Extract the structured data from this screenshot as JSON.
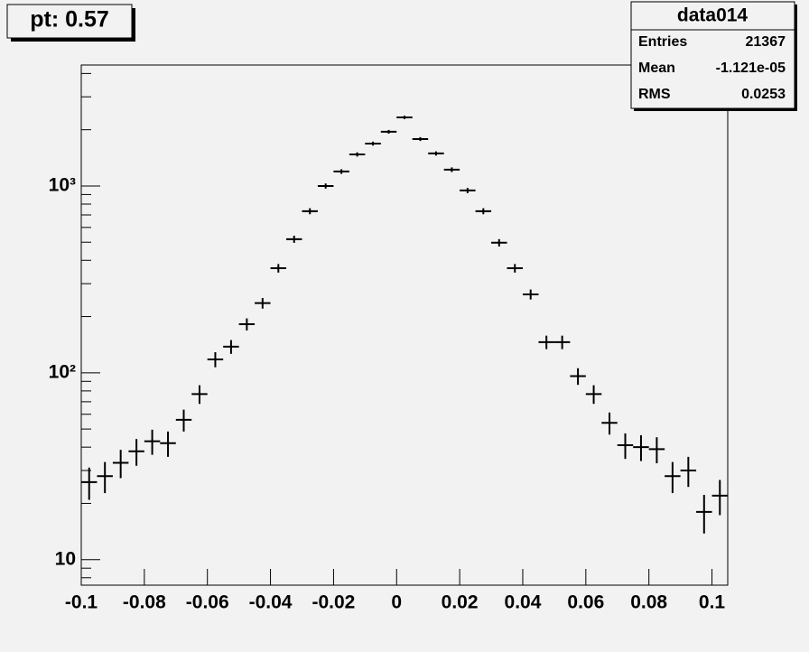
{
  "chart_data": {
    "type": "histogram",
    "title": "pt: 0.57",
    "bins": [
      -0.1,
      -0.095,
      -0.09,
      -0.085,
      -0.08,
      -0.075,
      -0.07,
      -0.065,
      -0.06,
      -0.055,
      -0.05,
      -0.045,
      -0.04,
      -0.035,
      -0.03,
      -0.025,
      -0.02,
      -0.015,
      -0.01,
      -0.005,
      0,
      0.005,
      0.01,
      0.015,
      0.02,
      0.025,
      0.03,
      0.035,
      0.04,
      0.045,
      0.05,
      0.055,
      0.06,
      0.065,
      0.07,
      0.075,
      0.08,
      0.085,
      0.09,
      0.095,
      0.1,
      0.105
    ],
    "values": [
      26,
      28,
      33,
      38,
      43,
      42,
      56,
      77,
      118,
      138,
      182,
      236,
      363,
      519,
      733,
      1000,
      1195,
      1475,
      1686,
      1950,
      2328,
      1783,
      1493,
      1222,
      946,
      733,
      497,
      363,
      263,
      146,
      146,
      96,
      77,
      54,
      41,
      40,
      39,
      28,
      30,
      18,
      22
    ],
    "errors": [
      5.1,
      5.3,
      5.7,
      6.2,
      6.6,
      6.5,
      7.5,
      8.8,
      10.9,
      11.7,
      13.5,
      15.4,
      19.1,
      22.8,
      27.1,
      31.6,
      34.6,
      38.4,
      41.1,
      44.2,
      48.2,
      42.2,
      38.6,
      35.0,
      30.8,
      27.1,
      22.3,
      19.1,
      16.2,
      12.1,
      12.1,
      9.8,
      8.8,
      7.3,
      6.4,
      6.3,
      6.2,
      5.3,
      5.5,
      4.2,
      4.7
    ],
    "color": "#000000",
    "xlim": [
      -0.1,
      0.105
    ],
    "xticks": [
      -0.1,
      -0.08,
      -0.06,
      -0.04,
      -0.02,
      0,
      0.02,
      0.04,
      0.06,
      0.08,
      0.1
    ],
    "ylim": [
      7.3,
      4440
    ],
    "log_y": true,
    "yticks": [
      10,
      {
        "value": 100,
        "label": "10²"
      },
      {
        "value": 1000,
        "label": "10³"
      }
    ],
    "yminorticks": [
      8,
      9,
      20,
      30,
      40,
      50,
      60,
      70,
      80,
      90,
      200,
      300,
      400,
      500,
      600,
      700,
      800,
      900,
      2000,
      3000,
      4000
    ],
    "stats": {
      "title": "data014",
      "rows": [
        [
          "Entries",
          "21367"
        ],
        [
          "Mean",
          "-1.121e-05"
        ],
        [
          "RMS",
          "0.0253"
        ]
      ]
    }
  }
}
